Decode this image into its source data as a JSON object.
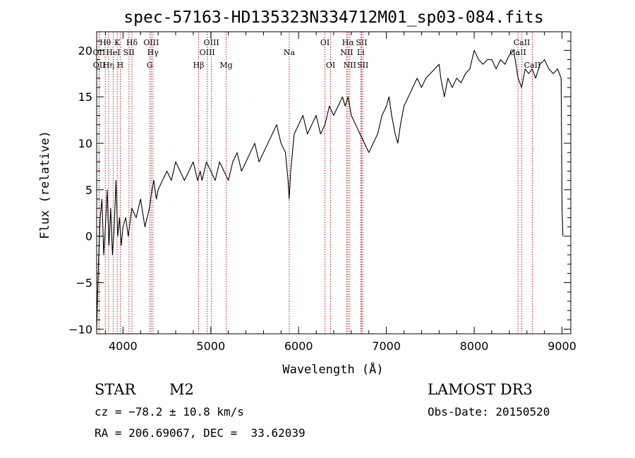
{
  "chart_data": {
    "type": "line",
    "title": "spec-57163-HD135323N334712M01_sp03-084.fits",
    "xlabel": "Wavelength (Å)",
    "ylabel": "Flux (relative)",
    "xlim": [
      3700,
      9100
    ],
    "ylim": [
      -10.5,
      22
    ],
    "xticks": [
      4000,
      5000,
      6000,
      7000,
      8000,
      9000
    ],
    "xtick_labels": [
      "4000",
      "5000",
      "6000",
      "7000",
      "8000",
      "9000"
    ],
    "yticks": [
      -10,
      -5,
      0,
      5,
      10,
      15,
      20
    ],
    "ytick_labels": [
      "−10",
      "−5",
      "0",
      "5",
      "10",
      "15",
      "20"
    ],
    "series": [
      {
        "name": "spectrum",
        "x": [
          3700,
          3720,
          3740,
          3760,
          3780,
          3800,
          3820,
          3840,
          3860,
          3880,
          3900,
          3920,
          3940,
          3960,
          3980,
          4000,
          4030,
          4060,
          4100,
          4150,
          4200,
          4250,
          4300,
          4330,
          4350,
          4380,
          4400,
          4450,
          4500,
          4550,
          4600,
          4650,
          4700,
          4750,
          4800,
          4850,
          4880,
          4900,
          4950,
          5000,
          5050,
          5100,
          5150,
          5200,
          5250,
          5300,
          5350,
          5400,
          5450,
          5500,
          5550,
          5600,
          5650,
          5700,
          5750,
          5800,
          5850,
          5880,
          5893,
          5910,
          5950,
          6000,
          6050,
          6100,
          6150,
          6200,
          6250,
          6300,
          6350,
          6400,
          6450,
          6500,
          6530,
          6563,
          6600,
          6650,
          6700,
          6750,
          6800,
          6850,
          6900,
          6950,
          7000,
          7030,
          7060,
          7100,
          7130,
          7160,
          7200,
          7250,
          7300,
          7350,
          7400,
          7450,
          7500,
          7550,
          7600,
          7620,
          7640,
          7660,
          7700,
          7750,
          7800,
          7850,
          7900,
          7950,
          8000,
          8050,
          8100,
          8150,
          8200,
          8250,
          8300,
          8350,
          8400,
          8450,
          8500,
          8540,
          8580,
          8620,
          8660,
          8700,
          8750,
          8800,
          8850,
          8900,
          8950,
          8990,
          9000,
          9010
        ],
        "y": [
          -10,
          -3,
          2,
          4,
          -2,
          1,
          5,
          -1,
          3,
          -2,
          1,
          6,
          0,
          2,
          -1,
          1,
          2,
          0,
          3,
          2,
          4,
          1,
          3,
          5,
          6,
          4,
          5,
          6,
          7,
          6,
          8,
          7,
          6,
          7,
          8,
          6,
          7,
          6,
          8,
          7,
          6,
          8,
          7,
          6,
          8,
          9,
          7,
          8,
          9,
          10,
          8,
          9,
          10,
          11,
          12,
          10,
          9,
          6,
          4,
          7,
          11,
          12,
          13,
          11,
          12,
          13,
          11,
          12,
          14,
          13,
          14,
          15,
          14,
          15,
          13,
          12,
          11,
          10,
          9,
          10,
          11,
          13,
          14,
          15,
          13,
          11,
          10,
          12,
          14,
          15,
          16,
          17,
          16,
          17,
          17.5,
          18,
          18.5,
          17,
          16,
          15,
          17,
          16,
          17,
          16.5,
          17.5,
          18,
          20,
          19,
          18.5,
          19,
          19,
          18,
          19,
          18.5,
          19.5,
          20,
          17,
          16,
          18,
          17.5,
          18,
          17,
          18.5,
          19,
          18,
          17.5,
          18,
          17,
          3,
          0
        ]
      }
    ],
    "lines": [
      {
        "name": "OII",
        "wl": 3727,
        "row": 2
      },
      {
        "name": "OII",
        "wl": 3729,
        "row": 3
      },
      {
        "name": "Hθ",
        "wl": 3798,
        "row": 1
      },
      {
        "name": "Hη",
        "wl": 3835,
        "row": 3
      },
      {
        "name": "HeI",
        "wl": 3888,
        "row": 2
      },
      {
        "name": "K",
        "wl": 3934,
        "row": 1
      },
      {
        "name": "H",
        "wl": 3969,
        "row": 3
      },
      {
        "name": "SII",
        "wl": 4068,
        "row": 2
      },
      {
        "name": "Hδ",
        "wl": 4102,
        "row": 1
      },
      {
        "name": "OIII",
        "wl": 4321,
        "row": 1
      },
      {
        "name": "G",
        "wl": 4305,
        "row": 3
      },
      {
        "name": "Hγ",
        "wl": 4341,
        "row": 2
      },
      {
        "name": "Hβ",
        "wl": 4861,
        "row": 3
      },
      {
        "name": "OIII",
        "wl": 4959,
        "row": 2
      },
      {
        "name": "OIII",
        "wl": 5007,
        "row": 1
      },
      {
        "name": "Mg",
        "wl": 5175,
        "row": 3
      },
      {
        "name": "Na",
        "wl": 5893,
        "row": 2
      },
      {
        "name": "OI",
        "wl": 6300,
        "row": 1
      },
      {
        "name": "OI",
        "wl": 6364,
        "row": 3
      },
      {
        "name": "NII",
        "wl": 6548,
        "row": 2
      },
      {
        "name": "Hα",
        "wl": 6563,
        "row": 1
      },
      {
        "name": "NII",
        "wl": 6583,
        "row": 3
      },
      {
        "name": "Li",
        "wl": 6708,
        "row": 2
      },
      {
        "name": "SII",
        "wl": 6717,
        "row": 1
      },
      {
        "name": "SII",
        "wl": 6731,
        "row": 3
      },
      {
        "name": "CaII",
        "wl": 8498,
        "row": 2
      },
      {
        "name": "CaII",
        "wl": 8542,
        "row": 1
      },
      {
        "name": "CaII",
        "wl": 8662,
        "row": 3
      }
    ]
  },
  "info": {
    "class_label": "STAR",
    "subclass": "M2",
    "survey": "LAMOST DR3",
    "cz": "cz = −78.2 ± 10.8 km/s",
    "obs_date": "Obs-Date: 20150520",
    "coords": "RA = 206.69067, DEC =  33.62039"
  },
  "colors": {
    "spectrum": "#000000",
    "line_markers": "#b22222",
    "axes": "#000000"
  }
}
